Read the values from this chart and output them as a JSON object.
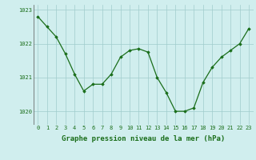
{
  "x": [
    0,
    1,
    2,
    3,
    4,
    5,
    6,
    7,
    8,
    9,
    10,
    11,
    12,
    13,
    14,
    15,
    16,
    17,
    18,
    19,
    20,
    21,
    22,
    23
  ],
  "y": [
    1022.8,
    1022.5,
    1022.2,
    1021.7,
    1021.1,
    1020.6,
    1020.8,
    1020.8,
    1021.1,
    1021.6,
    1021.8,
    1021.85,
    1021.75,
    1021.0,
    1020.55,
    1020.0,
    1020.0,
    1020.1,
    1020.85,
    1021.3,
    1021.6,
    1021.8,
    1022.0,
    1022.45
  ],
  "line_color": "#1a6e1a",
  "marker": "D",
  "marker_size": 1.8,
  "bg_color": "#d0eeee",
  "grid_color": "#a0cccc",
  "xlabel": "Graphe pression niveau de la mer (hPa)",
  "xlabel_fontsize": 6.5,
  "ylim": [
    1019.6,
    1023.15
  ],
  "yticks": [
    1020,
    1021,
    1022,
    1023
  ],
  "xticks": [
    0,
    1,
    2,
    3,
    4,
    5,
    6,
    7,
    8,
    9,
    10,
    11,
    12,
    13,
    14,
    15,
    16,
    17,
    18,
    19,
    20,
    21,
    22,
    23
  ],
  "tick_fontsize": 5.0,
  "line_width": 0.9
}
